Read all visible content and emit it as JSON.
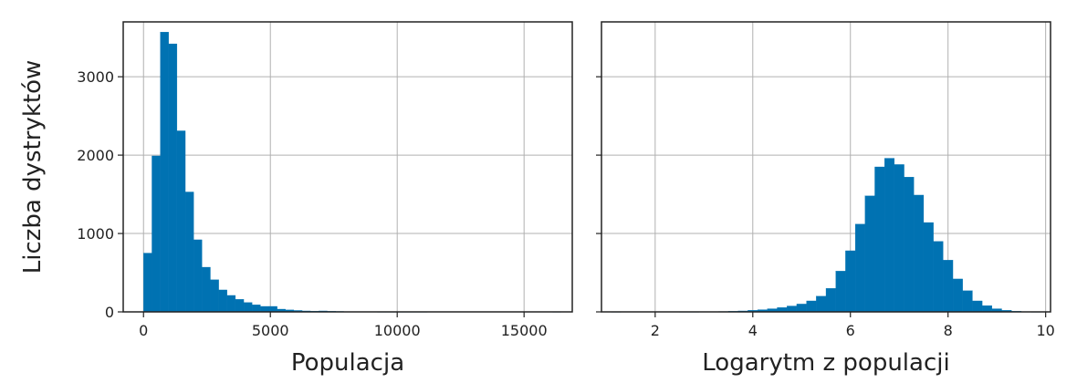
{
  "chart_data": [
    {
      "type": "bar",
      "subtype": "histogram",
      "xlabel": "Populacja",
      "ylabel": "Liczba dystryktów",
      "xlim": [
        -800,
        16900
      ],
      "ylim": [
        0,
        3700
      ],
      "xticks": [
        "0",
        "5000",
        "10000",
        "15000"
      ],
      "yticks": [
        "0",
        "1000",
        "2000",
        "3000"
      ],
      "grid": true,
      "color": "#0072b2",
      "bin_start": 3,
      "bin_width": 329,
      "values": [
        750,
        1990,
        3570,
        3420,
        2310,
        1530,
        920,
        570,
        410,
        280,
        210,
        160,
        120,
        90,
        70,
        70,
        35,
        25,
        18,
        12,
        10,
        12,
        8,
        6,
        4,
        3,
        2,
        2,
        1,
        1,
        1,
        1,
        1,
        1,
        0,
        0,
        0,
        0,
        0,
        0,
        0,
        0,
        0,
        0,
        0,
        0,
        0,
        0,
        0,
        1
      ]
    },
    {
      "type": "bar",
      "subtype": "histogram",
      "xlabel": "Logarytm z populacji",
      "ylabel": "",
      "xlim": [
        0.9,
        10.1
      ],
      "ylim": [
        0,
        3700
      ],
      "xticks": [
        "2",
        "4",
        "6",
        "8",
        "10"
      ],
      "yticks": [
        "0",
        "1000",
        "2000",
        "3000"
      ],
      "grid": true,
      "color": "#0072b2",
      "bin_start": 1.1,
      "bin_width": 0.2,
      "values": [
        1,
        0,
        0,
        0,
        0,
        0,
        0,
        1,
        1,
        2,
        3,
        5,
        8,
        12,
        20,
        28,
        40,
        55,
        75,
        100,
        140,
        200,
        300,
        520,
        780,
        1120,
        1480,
        1850,
        1960,
        1880,
        1720,
        1490,
        1140,
        900,
        660,
        420,
        270,
        140,
        80,
        40,
        20,
        8,
        3,
        1,
        0,
        0
      ]
    }
  ]
}
